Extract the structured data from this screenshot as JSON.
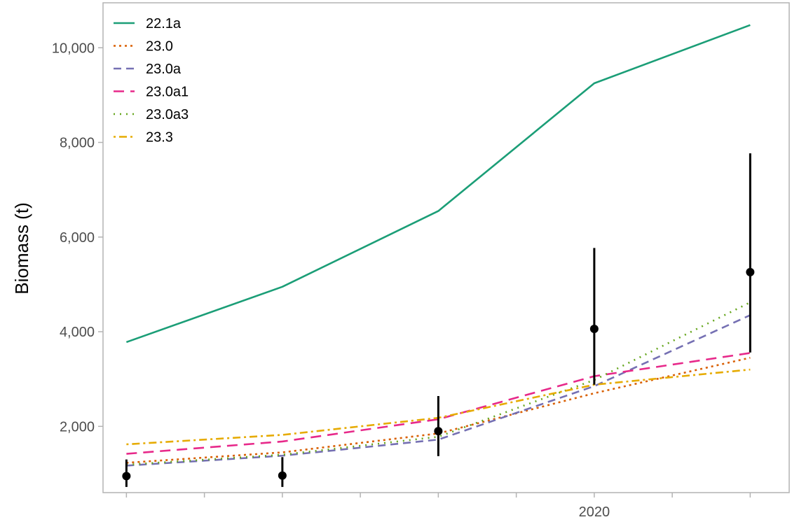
{
  "chart_data": {
    "type": "line",
    "title": "",
    "xlabel": "",
    "ylabel": "Biomass (t)",
    "x": [
      2014,
      2016,
      2018,
      2020,
      2022
    ],
    "xlim": [
      2013.7,
      2022.5
    ],
    "ylim": [
      600,
      10950
    ],
    "x_ticks": [
      2014,
      2015,
      2016,
      2017,
      2018,
      2019,
      2020,
      2021,
      2022
    ],
    "x_tick_labels": [
      {
        "x": 2020,
        "label": "2020"
      }
    ],
    "y_ticks": [
      2000,
      4000,
      6000,
      8000,
      10000
    ],
    "y_tick_labels": [
      "2,000",
      "4,000",
      "6,000",
      "8,000",
      "10,000"
    ],
    "grid": false,
    "legend_position": "top-left",
    "series": [
      {
        "name": "22.1a",
        "color": "#1b9e77",
        "dash": "solid",
        "values": [
          3780,
          4950,
          6550,
          9250,
          10480
        ]
      },
      {
        "name": "23.0",
        "color": "#d95f02",
        "dash": "dotted",
        "values": [
          1230,
          1450,
          1850,
          2700,
          3450
        ]
      },
      {
        "name": "23.0a",
        "color": "#7570b3",
        "dash": "dashed",
        "values": [
          1170,
          1380,
          1720,
          2850,
          4350
        ]
      },
      {
        "name": "23.0a1",
        "color": "#e7298a",
        "dash": "longdash",
        "values": [
          1420,
          1680,
          2150,
          3060,
          3550
        ]
      },
      {
        "name": "23.0a3",
        "color": "#66a61e",
        "dash": "dotted-sparse",
        "values": [
          1190,
          1400,
          1780,
          2980,
          4620
        ]
      },
      {
        "name": "23.3",
        "color": "#e6ab02",
        "dash": "dotdash",
        "values": [
          1620,
          1820,
          2180,
          2880,
          3200
        ]
      }
    ],
    "observations": {
      "color": "#000000",
      "points": [
        {
          "x": 2014,
          "y": 950,
          "lower": 720,
          "upper": 1300
        },
        {
          "x": 2016,
          "y": 960,
          "lower": 720,
          "upper": 1350
        },
        {
          "x": 2018,
          "y": 1900,
          "lower": 1370,
          "upper": 2640
        },
        {
          "x": 2020,
          "y": 4060,
          "lower": 2880,
          "upper": 5770
        },
        {
          "x": 2022,
          "y": 5260,
          "lower": 3560,
          "upper": 7770
        }
      ]
    }
  }
}
